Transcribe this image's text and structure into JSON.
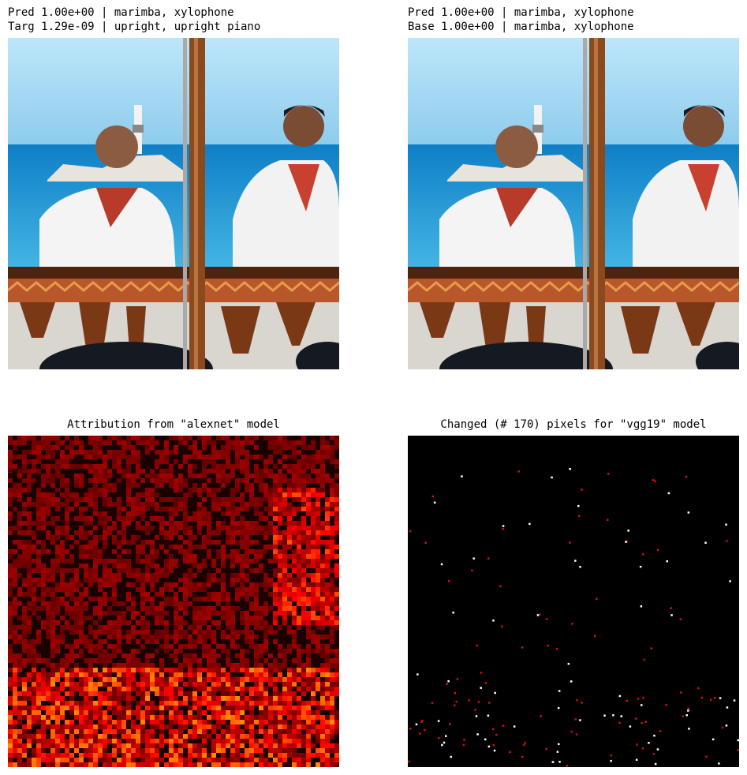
{
  "panels": [
    {
      "title_lines": [
        "Pred 1.00e+00 | marimba, xylophone",
        "Targ 1.29e-09 | upright, upright piano"
      ]
    },
    {
      "title_lines": [
        "Pred 1.00e+00 | marimba, xylophone",
        "Base 1.00e+00 | marimba, xylophone"
      ]
    },
    {
      "title_lines": [
        "Attribution from \"alexnet\" model"
      ]
    },
    {
      "title_lines": [
        "Changed (# 170) pixels for \"vgg19\" model"
      ]
    }
  ]
}
